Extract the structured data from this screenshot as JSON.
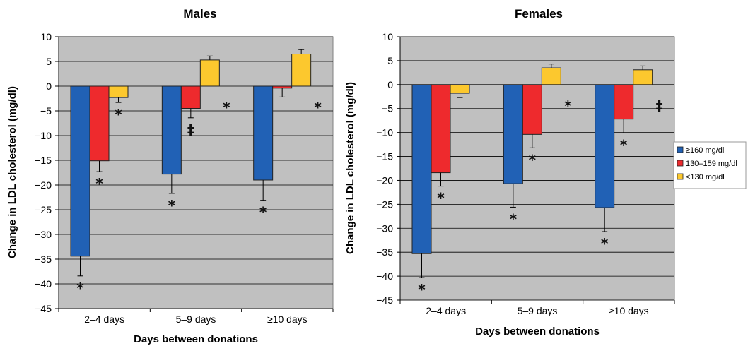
{
  "chart_data": [
    {
      "type": "bar",
      "title": "Males",
      "xlabel": "Days between donations",
      "ylabel": "Change in LDL cholesterol (mg/dl)",
      "ylim": [
        -45,
        10
      ],
      "yticks": [
        10,
        5,
        0,
        -5,
        -10,
        -15,
        -20,
        -25,
        -30,
        -35,
        -40,
        -45
      ],
      "ytick_labels": [
        "10",
        "5",
        "0",
        "−5",
        "−10",
        "−15",
        "−20",
        "−25",
        "−30",
        "−35",
        "−40",
        "−45"
      ],
      "grid": true,
      "categories": [
        "2–4 days",
        "5–9 days",
        "≥10 days"
      ],
      "series": [
        {
          "name": "≥160 mg/dl",
          "values": [
            -34.4,
            -17.8,
            -19.0
          ],
          "errors": [
            4.0,
            3.9,
            4.1
          ],
          "marks": [
            "*",
            "*",
            "*"
          ]
        },
        {
          "name": "130–159 mg/dl",
          "values": [
            -15.1,
            -4.5,
            -0.4
          ],
          "errors": [
            2.2,
            1.9,
            1.8
          ],
          "marks": [
            "*",
            "‡",
            ""
          ]
        },
        {
          "name": "<130 mg/dl",
          "values": [
            -2.3,
            5.3,
            6.5
          ],
          "errors": [
            1.0,
            0.8,
            0.9
          ],
          "marks": [
            "*",
            "*",
            "*"
          ]
        }
      ]
    },
    {
      "type": "bar",
      "title": "Females",
      "xlabel": "Days between donations",
      "ylabel": "Change in LDL cholesterol (mg/dl)",
      "ylim": [
        -45,
        10
      ],
      "yticks": [
        10,
        5,
        0,
        -5,
        -10,
        -15,
        -20,
        -25,
        -30,
        -35,
        -40,
        -45
      ],
      "ytick_labels": [
        "10",
        "5",
        "0",
        "−5",
        "−10",
        "−15",
        "−20",
        "−25",
        "−30",
        "−35",
        "−40",
        "−45"
      ],
      "grid": true,
      "categories": [
        "2–4 days",
        "5–9 days",
        "≥10 days"
      ],
      "series": [
        {
          "name": "≥160 mg/dl",
          "values": [
            -35.3,
            -20.7,
            -25.7
          ],
          "errors": [
            5.0,
            4.9,
            5.0
          ],
          "marks": [
            "*",
            "*",
            "*"
          ]
        },
        {
          "name": "130–159 mg/dl",
          "values": [
            -18.4,
            -10.4,
            -7.2
          ],
          "errors": [
            2.8,
            2.8,
            2.9
          ],
          "marks": [
            "*",
            "*",
            "*"
          ]
        },
        {
          "name": "<130 mg/dl",
          "values": [
            -1.8,
            3.5,
            3.1
          ],
          "errors": [
            0.9,
            0.8,
            0.8
          ],
          "marks": [
            "",
            "*",
            "‡"
          ]
        }
      ]
    }
  ],
  "legend": {
    "position": "right",
    "entries": [
      "≥160 mg/dl",
      "130–159 mg/dl",
      "<130 mg/dl"
    ]
  },
  "colors": [
    "#2161b5",
    "#ee2a2d",
    "#fcc82e"
  ],
  "plot_background": "#c0c0c0"
}
